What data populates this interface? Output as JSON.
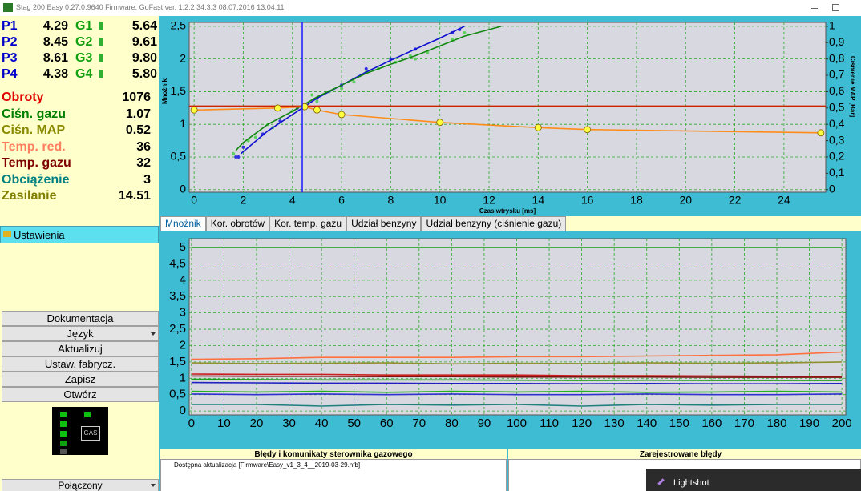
{
  "window_title": "Stag 200 Easy 0.27.0.9640 Firmware: GoFast  ver. 1.2.2  34.3.3  08.07.2016 13:04:11",
  "injectors": [
    {
      "p": "P1",
      "p_value": "4.29",
      "g": "G1",
      "g_value": "5.64"
    },
    {
      "p": "P2",
      "p_value": "8.45",
      "g": "G2",
      "g_value": "9.61"
    },
    {
      "p": "P3",
      "p_value": "8.61",
      "g": "G3",
      "g_value": "9.80"
    },
    {
      "p": "P4",
      "p_value": "4.38",
      "g": "G4",
      "g_value": "5.80"
    }
  ],
  "params": [
    {
      "label": "Obroty",
      "value": "1076",
      "color": "#e00000"
    },
    {
      "label": "Ciśn. gazu",
      "value": "1.07",
      "color": "#008000"
    },
    {
      "label": "Ciśn. MAP",
      "value": "0.52",
      "color": "#8a8a00"
    },
    {
      "label": "Temp. red.",
      "value": "36",
      "color": "#ff8060"
    },
    {
      "label": "Temp. gazu",
      "value": "32",
      "color": "#800000"
    },
    {
      "label": "Obciążenie",
      "value": "3",
      "color": "#008080"
    },
    {
      "label": "Zasilanie",
      "value": "14.51",
      "color": "#808000"
    }
  ],
  "settings_button": "Ustawienia",
  "menu": [
    "Dokumentacja",
    "Język",
    "Aktualizuj",
    "Ustaw. fabrycz.",
    "Zapisz",
    "Otwórz"
  ],
  "gas_indicator": "GAS",
  "status": "Połączony",
  "tabs": [
    "Mnożnik",
    "Kor. obrotów",
    "Kor. temp. gazu",
    "Udział benzyny",
    "Udział benzyny (ciśnienie gazu)"
  ],
  "errors_panel": {
    "title": "Błędy i komunikaty sterownika gazowego",
    "message": "Dostępna aktualizacja [Firmware\\Easy_v1_3_4__2019-03-29.nfb]"
  },
  "registered_errors_title": "Zarejestrowane błędy",
  "lightshot": "Lightshot",
  "chart_data": [
    {
      "type": "line",
      "xlabel": "Czas wtrysku [ms]",
      "ylabel": "Mnożnik",
      "y2label": "Ciśnienie MAP [Bar]",
      "xlim": [
        -0.2,
        25.7
      ],
      "ylim": [
        -0.04,
        2.56
      ],
      "y2lim": [
        -0.016,
        1.024
      ],
      "xticks": [
        0,
        2,
        4,
        6,
        8,
        10,
        12,
        14,
        16,
        18,
        20,
        22,
        24
      ],
      "yticks": [
        0,
        {
          "value": 0.5,
          "label": "0,5"
        },
        1,
        {
          "value": 1.5,
          "label": "1,5"
        },
        2,
        {
          "value": 2.5,
          "label": "2,5"
        }
      ],
      "y2ticks": [
        0,
        {
          "value": 0.1,
          "label": "0,1"
        },
        {
          "value": 0.2,
          "label": "0,2"
        },
        {
          "value": 0.3,
          "label": "0,3"
        },
        {
          "value": 0.4,
          "label": "0,4"
        },
        {
          "value": 0.5,
          "label": "0,5"
        },
        {
          "value": 0.6,
          "label": "0,6"
        },
        {
          "value": 0.7,
          "label": "0,7"
        },
        {
          "value": 0.8,
          "label": "0,8"
        },
        {
          "value": 0.9,
          "label": "0,9"
        },
        1
      ],
      "grid": true,
      "cursor_x": 4.4,
      "cursor_color": "#1a1aff",
      "series": [
        {
          "mode": "markers",
          "color": "#60d060",
          "x": [
            1.6,
            2.2,
            2.5,
            3,
            3.5,
            4,
            4.8,
            5.5,
            6.5,
            7,
            7.5,
            8.2,
            9,
            9.5,
            10.5,
            11,
            6,
            5,
            3.2,
            8.8
          ],
          "values": [
            0.55,
            0.75,
            0.8,
            1.0,
            1.05,
            1.2,
            1.45,
            1.5,
            1.65,
            1.8,
            1.85,
            1.95,
            2.0,
            2.1,
            2.3,
            2.4,
            1.55,
            1.35,
            0.95,
            2.05
          ]
        },
        {
          "mode": "markers",
          "color": "#3030e0",
          "x": [
            1.8,
            2,
            2.8,
            3.5,
            4.2,
            5,
            6,
            7,
            8,
            9,
            10.5,
            10.8,
            1.7
          ],
          "values": [
            0.5,
            0.65,
            0.85,
            1.05,
            1.25,
            1.4,
            1.6,
            1.85,
            2.0,
            2.15,
            2.4,
            2.45,
            0.5
          ]
        },
        {
          "mode": "line",
          "color": "#cc2200",
          "x": [
            -0.2,
            25.7
          ],
          "values": [
            1.28,
            1.28
          ]
        },
        {
          "mode": "line",
          "color": "#1010d0",
          "x": [
            1.9,
            3,
            4,
            5,
            6,
            7,
            8,
            9,
            10,
            11
          ],
          "values": [
            0.55,
            0.9,
            1.15,
            1.4,
            1.6,
            1.8,
            1.98,
            2.15,
            2.32,
            2.5
          ]
        },
        {
          "mode": "line",
          "color": "#108810",
          "x": [
            1.7,
            2,
            3,
            4,
            5,
            6,
            7,
            8,
            9,
            10,
            11,
            12.5
          ],
          "values": [
            0.6,
            0.72,
            1.0,
            1.2,
            1.42,
            1.6,
            1.78,
            1.92,
            2.05,
            2.2,
            2.35,
            2.5
          ]
        },
        {
          "mode": "line+markers",
          "color": "#ff8c1a",
          "x": [
            0,
            3.4,
            4.5,
            5,
            6,
            10,
            14,
            16,
            25.5
          ],
          "values": [
            1.22,
            1.25,
            1.27,
            1.22,
            1.15,
            1.03,
            0.95,
            0.92,
            0.87
          ]
        }
      ]
    },
    {
      "type": "line",
      "x": [
        0,
        20,
        40,
        60,
        80,
        100,
        120,
        140,
        160,
        180,
        200
      ],
      "xlim": [
        -0.7,
        201.2
      ],
      "ylim": [
        -0.12,
        5.27
      ],
      "xticks": [
        0,
        10,
        20,
        30,
        40,
        50,
        60,
        70,
        80,
        90,
        100,
        110,
        120,
        130,
        140,
        150,
        160,
        170,
        180,
        190,
        200
      ],
      "yticks": [
        0,
        {
          "value": 0.5,
          "label": "0,5"
        },
        1,
        {
          "value": 1.5,
          "label": "1,5"
        },
        2,
        {
          "value": 2.5,
          "label": "2,5"
        },
        3,
        {
          "value": 3.5,
          "label": "3,5"
        },
        4,
        {
          "value": 4.5,
          "label": "4,5"
        },
        5
      ],
      "grid": true,
      "series": [
        {
          "mode": "line",
          "color": "#10a010",
          "values": [
            5,
            5,
            5,
            5,
            5,
            5,
            5,
            5,
            5,
            5,
            5
          ]
        },
        {
          "mode": "line",
          "color": "#ff7040",
          "values": [
            1.58,
            1.6,
            1.64,
            1.64,
            1.64,
            1.66,
            1.66,
            1.68,
            1.7,
            1.72,
            1.8
          ]
        },
        {
          "mode": "line",
          "color": "#909030",
          "values": [
            1.47,
            1.45,
            1.46,
            1.47,
            1.44,
            1.46,
            1.45,
            1.47,
            1.46,
            1.47,
            1.5
          ]
        },
        {
          "mode": "line",
          "color": "#cc2020",
          "values": [
            1.13,
            1.12,
            1.12,
            1.1,
            1.1,
            1.1,
            1.08,
            1.08,
            1.07,
            1.06,
            1.05
          ]
        },
        {
          "mode": "line",
          "color": "#801010",
          "values": [
            1.07,
            1.06,
            1.06,
            1.05,
            1.05,
            1.04,
            1.04,
            1.04,
            1.03,
            1.03,
            1.03
          ]
        },
        {
          "mode": "line",
          "color": "#20a020",
          "values": [
            0.97,
            0.96,
            0.95,
            0.95,
            0.95,
            0.94,
            0.93,
            0.94,
            0.93,
            0.93,
            0.93
          ]
        },
        {
          "mode": "line",
          "color": "#2020c0",
          "values": [
            0.87,
            0.86,
            0.85,
            0.85,
            0.84,
            0.84,
            0.83,
            0.84,
            0.83,
            0.83,
            0.84
          ]
        },
        {
          "mode": "line",
          "color": "#20b020",
          "values": [
            0.6,
            0.58,
            0.6,
            0.57,
            0.6,
            0.58,
            0.6,
            0.57,
            0.58,
            0.6,
            0.58
          ]
        },
        {
          "mode": "line",
          "color": "#3030d0",
          "values": [
            0.52,
            0.5,
            0.52,
            0.5,
            0.52,
            0.5,
            0.5,
            0.52,
            0.5,
            0.5,
            0.52
          ]
        },
        {
          "mode": "line",
          "color": "#208080",
          "values": [
            0.2,
            0.2,
            0.15,
            0.2,
            0.18,
            0.2,
            0.15,
            0.2,
            0.18,
            0.2,
            0.2
          ]
        }
      ]
    }
  ]
}
